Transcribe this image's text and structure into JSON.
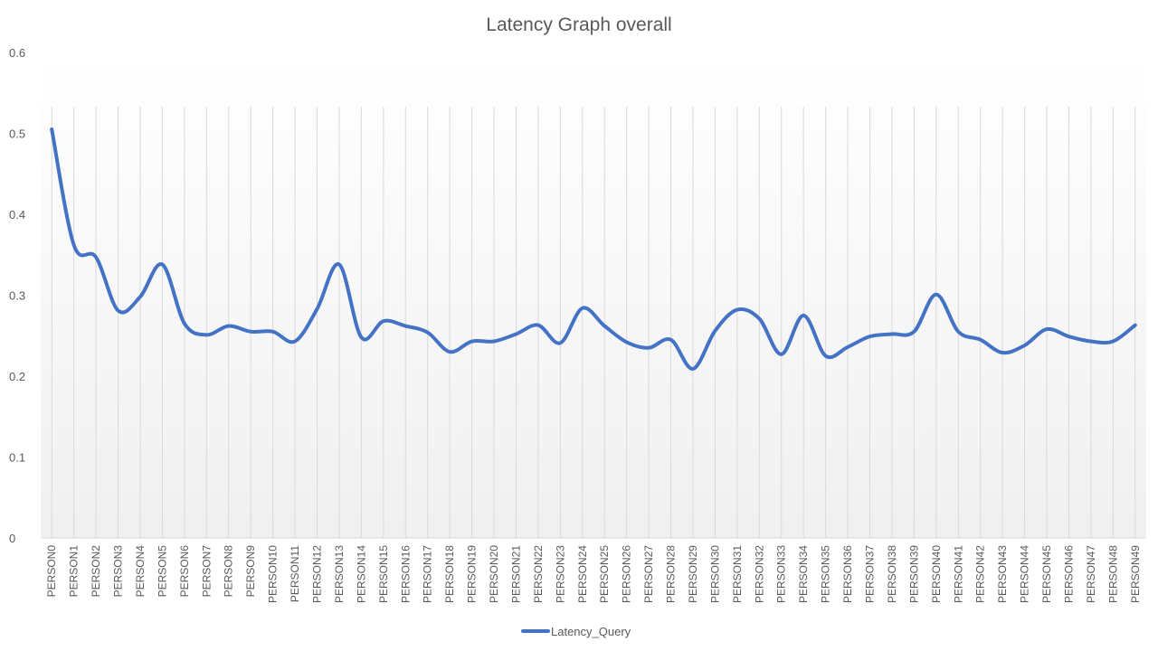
{
  "chart_data": {
    "type": "line",
    "title": "Latency Graph overall",
    "xlabel": "",
    "ylabel": "",
    "ylim": [
      0,
      0.6
    ],
    "yticks": [
      0,
      0.1,
      0.2,
      0.3,
      0.4,
      0.5,
      0.6
    ],
    "grid": "vertical",
    "legend_position": "bottom",
    "smooth": true,
    "categories": [
      "PERSON0",
      "PERSON1",
      "PERSON2",
      "PERSON3",
      "PERSON4",
      "PERSON5",
      "PERSON6",
      "PERSON7",
      "PERSON8",
      "PERSON9",
      "PERSON10",
      "PERSON11",
      "PERSON12",
      "PERSON13",
      "PERSON14",
      "PERSON15",
      "PERSON16",
      "PERSON17",
      "PERSON18",
      "PERSON19",
      "PERSON20",
      "PERSON21",
      "PERSON22",
      "PERSON23",
      "PERSON24",
      "PERSON25",
      "PERSON26",
      "PERSON27",
      "PERSON28",
      "PERSON29",
      "PERSON30",
      "PERSON31",
      "PERSON32",
      "PERSON33",
      "PERSON34",
      "PERSON35",
      "PERSON36",
      "PERSON37",
      "PERSON38",
      "PERSON39",
      "PERSON40",
      "PERSON41",
      "PERSON42",
      "PERSON43",
      "PERSON44",
      "PERSON45",
      "PERSON46",
      "PERSON47",
      "PERSON48",
      "PERSON49"
    ],
    "series": [
      {
        "name": "Latency_Query",
        "color": "#4472c4",
        "values": [
          0.505,
          0.362,
          0.347,
          0.281,
          0.298,
          0.338,
          0.265,
          0.251,
          0.262,
          0.255,
          0.255,
          0.243,
          0.283,
          0.338,
          0.248,
          0.268,
          0.262,
          0.254,
          0.23,
          0.243,
          0.243,
          0.252,
          0.263,
          0.241,
          0.284,
          0.262,
          0.242,
          0.235,
          0.245,
          0.209,
          0.256,
          0.282,
          0.271,
          0.227,
          0.275,
          0.225,
          0.236,
          0.249,
          0.252,
          0.255,
          0.301,
          0.255,
          0.245,
          0.229,
          0.238,
          0.258,
          0.249,
          0.243,
          0.243,
          0.263
        ]
      }
    ]
  }
}
